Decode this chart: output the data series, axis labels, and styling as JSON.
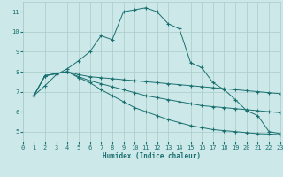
{
  "xlabel": "Humidex (Indice chaleur)",
  "bg_color": "#cce8e8",
  "grid_color": "#aacccc",
  "line_color": "#1a7070",
  "xlim": [
    0,
    23
  ],
  "ylim": [
    4.5,
    11.5
  ],
  "xticks": [
    0,
    1,
    2,
    3,
    4,
    5,
    6,
    7,
    8,
    9,
    10,
    11,
    12,
    13,
    14,
    15,
    16,
    17,
    18,
    19,
    20,
    21,
    22,
    23
  ],
  "yticks": [
    5,
    6,
    7,
    8,
    9,
    10,
    11
  ],
  "line1_x": [
    1,
    2,
    3,
    4,
    5,
    6,
    7,
    8,
    9,
    10,
    11,
    12,
    13,
    14,
    15,
    16,
    17,
    18,
    19,
    20,
    21,
    22,
    23
  ],
  "line1_y": [
    6.8,
    7.3,
    7.85,
    8.15,
    8.55,
    9.0,
    9.8,
    9.6,
    11.0,
    11.1,
    11.2,
    11.0,
    10.4,
    10.15,
    8.45,
    8.2,
    7.45,
    7.1,
    6.6,
    6.05,
    5.8,
    5.0,
    4.9
  ],
  "line2_x": [
    1,
    2,
    3,
    4,
    5,
    6,
    7,
    8,
    9,
    10,
    11,
    12,
    13,
    14,
    15,
    16,
    17,
    18,
    19,
    20,
    21,
    22,
    23
  ],
  "line2_y": [
    6.8,
    7.8,
    7.9,
    8.0,
    7.85,
    7.75,
    7.7,
    7.65,
    7.6,
    7.55,
    7.5,
    7.45,
    7.4,
    7.35,
    7.3,
    7.25,
    7.2,
    7.15,
    7.1,
    7.05,
    7.0,
    6.95,
    6.9
  ],
  "line3_x": [
    1,
    2,
    3,
    4,
    5,
    6,
    7,
    8,
    9,
    10,
    11,
    12,
    13,
    14,
    15,
    16,
    17,
    18,
    19,
    20,
    21,
    22,
    23
  ],
  "line3_y": [
    6.8,
    7.8,
    7.9,
    8.0,
    7.75,
    7.55,
    7.4,
    7.25,
    7.1,
    6.95,
    6.8,
    6.7,
    6.6,
    6.5,
    6.4,
    6.3,
    6.25,
    6.2,
    6.15,
    6.1,
    6.05,
    6.0,
    5.95
  ],
  "line4_x": [
    1,
    2,
    3,
    4,
    5,
    6,
    7,
    8,
    9,
    10,
    11,
    12,
    13,
    14,
    15,
    16,
    17,
    18,
    19,
    20,
    21,
    22,
    23
  ],
  "line4_y": [
    6.8,
    7.8,
    7.9,
    8.0,
    7.7,
    7.45,
    7.1,
    6.8,
    6.5,
    6.2,
    6.0,
    5.8,
    5.6,
    5.45,
    5.3,
    5.2,
    5.1,
    5.05,
    5.0,
    4.95,
    4.9,
    4.88,
    4.85
  ]
}
